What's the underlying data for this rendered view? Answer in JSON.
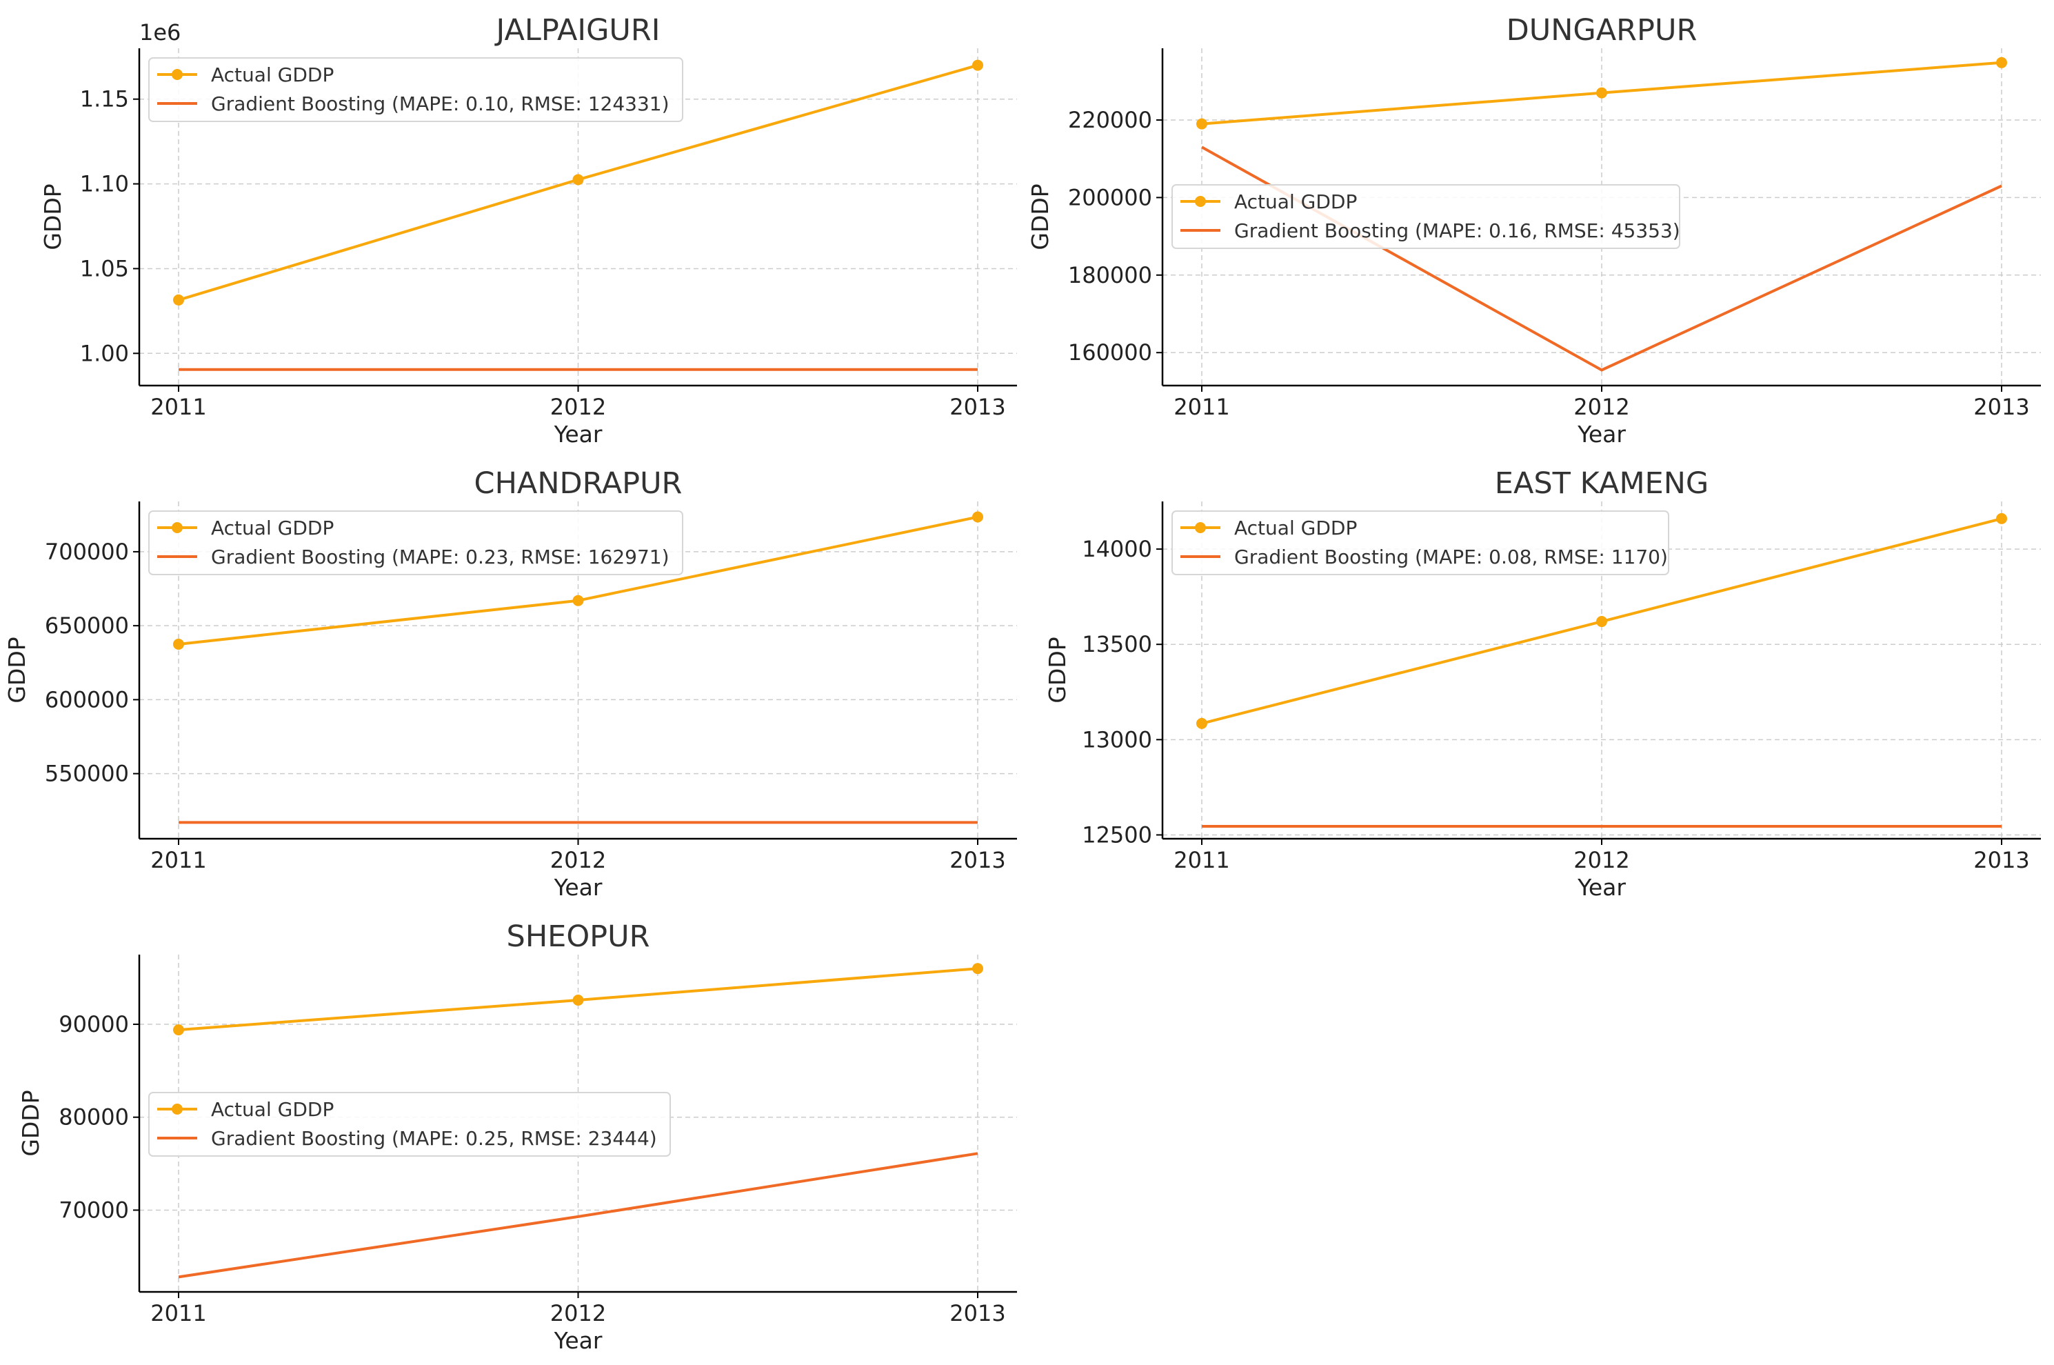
{
  "colors": {
    "actual": "#F9A80C",
    "gradient_boosting": "#F06A25",
    "grid": "#cccccc",
    "axis": "#000000"
  },
  "chart_data": [
    {
      "type": "line",
      "title": "JALPAIGURI",
      "xlabel": "Year",
      "ylabel": "GDDP",
      "x": [
        2011,
        2012,
        2013
      ],
      "y_offset_label": "1e6",
      "yticks": [
        1.0,
        1.05,
        1.1,
        1.15
      ],
      "ytick_labels": [
        "1.00",
        "1.05",
        "1.10",
        "1.15"
      ],
      "ylim": [
        0.981,
        1.18
      ],
      "grid": true,
      "legend_placement": "upper-left",
      "series": [
        {
          "name": "Actual GDDP",
          "values": [
            1.0315,
            1.1025,
            1.17
          ],
          "marker": "circle"
        },
        {
          "name": "Gradient Boosting (MAPE: 0.10, RMSE: 124331)",
          "values": [
            0.9905,
            0.9905,
            0.9905
          ]
        }
      ]
    },
    {
      "type": "line",
      "title": "DUNGARPUR",
      "xlabel": "Year",
      "ylabel": "GDDP",
      "x": [
        2011,
        2012,
        2013
      ],
      "yticks": [
        160000,
        180000,
        200000,
        220000
      ],
      "ytick_labels": [
        "160000",
        "180000",
        "200000",
        "220000"
      ],
      "ylim": [
        151500,
        238500
      ],
      "grid": true,
      "legend_placement": "center-left",
      "series": [
        {
          "name": "Actual GDDP",
          "values": [
            219000,
            227000,
            234800
          ],
          "marker": "circle"
        },
        {
          "name": "Gradient Boosting (MAPE: 0.16, RMSE: 45353)",
          "values": [
            213000,
            155500,
            203000
          ]
        }
      ]
    },
    {
      "type": "line",
      "title": "CHANDRAPUR",
      "xlabel": "Year",
      "ylabel": "GDDP",
      "x": [
        2011,
        2012,
        2013
      ],
      "yticks": [
        550000,
        600000,
        650000,
        700000
      ],
      "ytick_labels": [
        "550000",
        "600000",
        "650000",
        "700000"
      ],
      "ylim": [
        506000,
        734000
      ],
      "grid": true,
      "legend_placement": "upper-left",
      "series": [
        {
          "name": "Actual GDDP",
          "values": [
            637500,
            667000,
            723500
          ],
          "marker": "circle"
        },
        {
          "name": "Gradient Boosting (MAPE: 0.23, RMSE: 162971)",
          "values": [
            517000,
            517000,
            517000
          ]
        }
      ]
    },
    {
      "type": "line",
      "title": "EAST KAMENG",
      "xlabel": "Year",
      "ylabel": "GDDP",
      "x": [
        2011,
        2012,
        2013
      ],
      "yticks": [
        12500,
        13000,
        13500,
        14000
      ],
      "ytick_labels": [
        "12500",
        "13000",
        "13500",
        "14000"
      ],
      "ylim": [
        12480,
        14250
      ],
      "grid": true,
      "legend_placement": "upper-left",
      "series": [
        {
          "name": "Actual GDDP",
          "values": [
            13085,
            13620,
            14160
          ],
          "marker": "circle"
        },
        {
          "name": "Gradient Boosting (MAPE: 0.08, RMSE: 1170)",
          "values": [
            12545,
            12545,
            12545
          ]
        }
      ]
    },
    {
      "type": "line",
      "title": "SHEOPUR",
      "xlabel": "Year",
      "ylabel": "GDDP",
      "x": [
        2011,
        2012,
        2013
      ],
      "yticks": [
        70000,
        80000,
        90000
      ],
      "ytick_labels": [
        "70000",
        "80000",
        "90000"
      ],
      "ylim": [
        61200,
        97500
      ],
      "grid": true,
      "legend_placement": "center-left",
      "series": [
        {
          "name": "Actual GDDP",
          "values": [
            89400,
            92600,
            96000
          ],
          "marker": "circle"
        },
        {
          "name": "Gradient Boosting (MAPE: 0.25, RMSE: 23444)",
          "values": [
            62800,
            69300,
            76100
          ]
        }
      ]
    }
  ]
}
